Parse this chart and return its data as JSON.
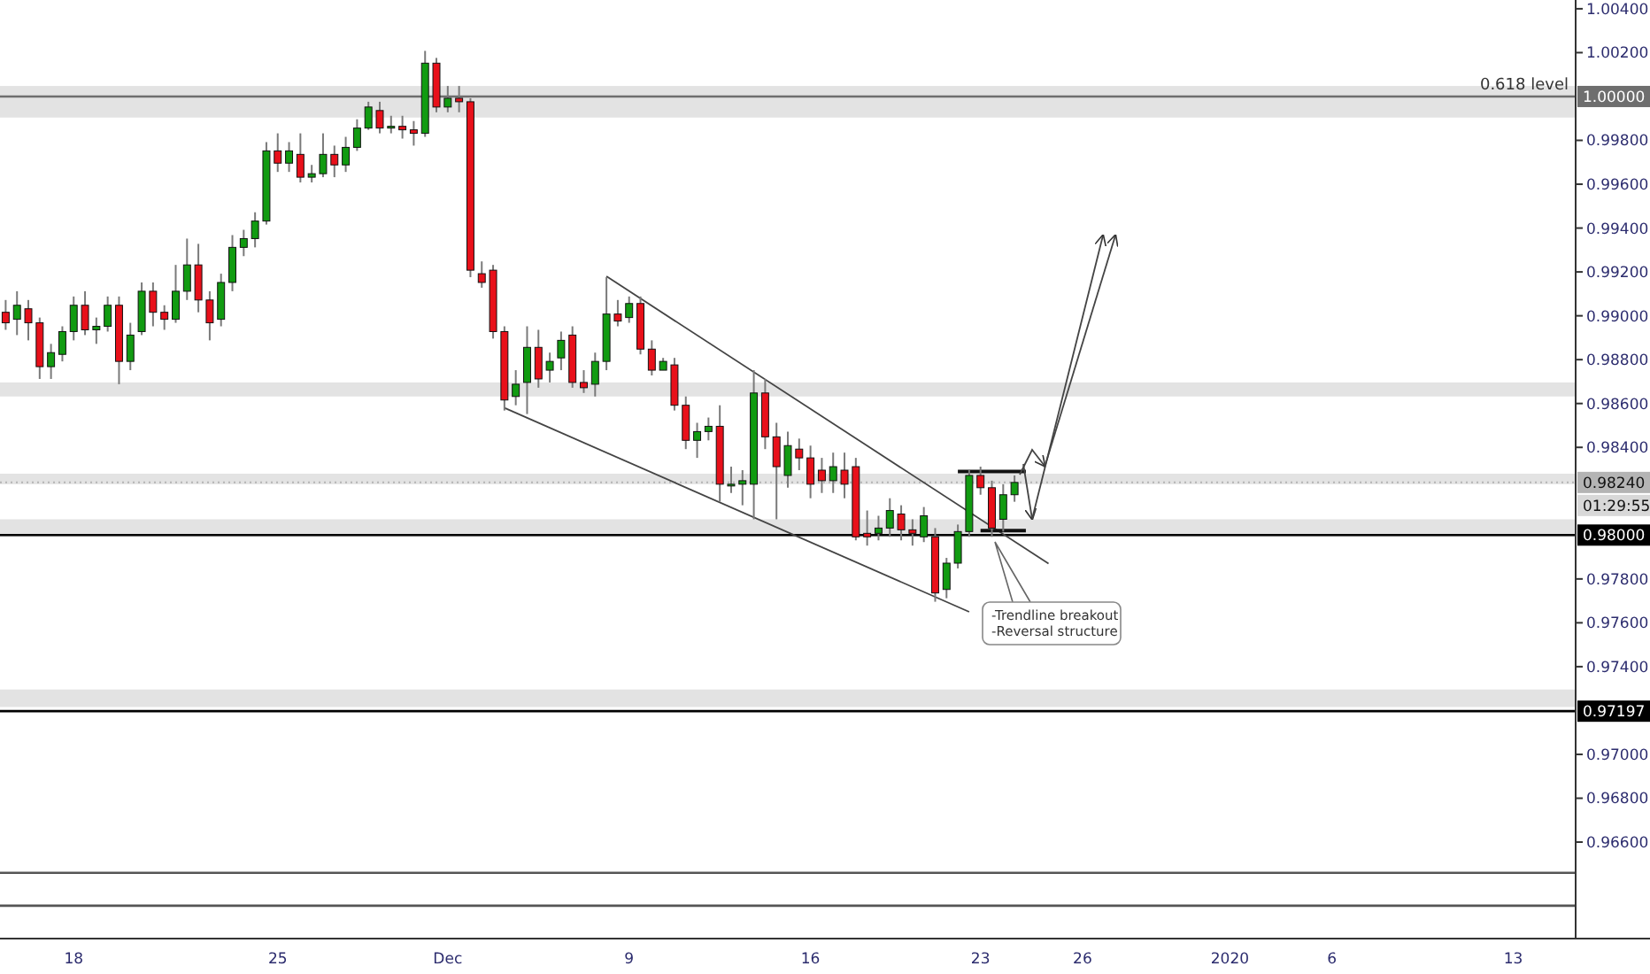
{
  "chart_data": {
    "type": "candlestick",
    "categories": [
      null,
      null,
      null,
      null,
      null,
      null,
      "18",
      null,
      null,
      null,
      null,
      null,
      null,
      null,
      null,
      null,
      null,
      null,
      null,
      null,
      null,
      null,
      null,
      null,
      "25",
      null,
      null,
      null,
      null,
      null,
      null,
      null,
      null,
      null,
      null,
      null,
      null,
      null,
      null,
      "Dec",
      null,
      null,
      null,
      null,
      null,
      null,
      null,
      null,
      null,
      null,
      null,
      null,
      null,
      null,
      null,
      "9",
      null,
      null,
      null,
      null,
      null,
      null,
      null,
      null,
      null,
      null,
      null,
      null,
      null,
      null,
      null,
      "16",
      null,
      null,
      null,
      null,
      null,
      null,
      null,
      null,
      null,
      null,
      null,
      null,
      null,
      null,
      "23",
      null,
      null,
      null,
      null,
      null,
      null,
      null,
      null,
      "26",
      null,
      null,
      null,
      null,
      null,
      null,
      null,
      null,
      null,
      null,
      null,
      null,
      "2020",
      null,
      null,
      null,
      null,
      null,
      null,
      null,
      null,
      "6",
      null,
      null,
      null,
      null,
      null,
      null,
      null,
      null,
      null,
      null,
      null,
      null,
      null,
      null,
      null,
      "13",
      null,
      null,
      null,
      null,
      null
    ],
    "ohlc": [
      [
        0.99016,
        0.99072,
        0.98936,
        0.98968
      ],
      [
        0.98984,
        0.99112,
        0.98912,
        0.99048
      ],
      [
        0.99032,
        0.99072,
        0.98888,
        0.98968
      ],
      [
        0.98968,
        0.98992,
        0.98712,
        0.98768
      ],
      [
        0.98768,
        0.98872,
        0.98712,
        0.98832
      ],
      [
        0.98824,
        0.98952,
        0.98792,
        0.98928
      ],
      [
        0.98928,
        0.99088,
        0.98888,
        0.99048
      ],
      [
        0.99048,
        0.99112,
        0.98912,
        0.98936
      ],
      [
        0.98936,
        0.98992,
        0.98872,
        0.98952
      ],
      [
        0.98952,
        0.99088,
        0.98928,
        0.99048
      ],
      [
        0.99048,
        0.99088,
        0.98688,
        0.98792
      ],
      [
        0.98792,
        0.98968,
        0.98752,
        0.98912
      ],
      [
        0.98928,
        0.99152,
        0.98912,
        0.99112
      ],
      [
        0.99112,
        0.99152,
        0.98952,
        0.99016
      ],
      [
        0.99016,
        0.99048,
        0.98936,
        0.98984
      ],
      [
        0.98984,
        0.99232,
        0.98968,
        0.99112
      ],
      [
        0.99112,
        0.99352,
        0.99072,
        0.99232
      ],
      [
        0.99232,
        0.99328,
        0.99016,
        0.99072
      ],
      [
        0.99072,
        0.99112,
        0.98888,
        0.98968
      ],
      [
        0.98984,
        0.99192,
        0.98952,
        0.99152
      ],
      [
        0.99152,
        0.99368,
        0.99112,
        0.99312
      ],
      [
        0.99312,
        0.99392,
        0.99272,
        0.99352
      ],
      [
        0.99352,
        0.99472,
        0.99312,
        0.99432
      ],
      [
        0.99432,
        0.99792,
        0.99416,
        0.99752
      ],
      [
        0.99752,
        0.99832,
        0.99656,
        0.99696
      ],
      [
        0.99696,
        0.99792,
        0.99656,
        0.99752
      ],
      [
        0.99736,
        0.99832,
        0.99608,
        0.99632
      ],
      [
        0.99632,
        0.99688,
        0.99608,
        0.99648
      ],
      [
        0.99648,
        0.99832,
        0.99632,
        0.99736
      ],
      [
        0.99736,
        0.99776,
        0.99632,
        0.99688
      ],
      [
        0.99688,
        0.99816,
        0.99656,
        0.99768
      ],
      [
        0.99768,
        0.99896,
        0.99752,
        0.99856
      ],
      [
        0.99856,
        0.99976,
        0.99848,
        0.99952
      ],
      [
        0.99936,
        0.99976,
        0.99832,
        0.99856
      ],
      [
        0.99856,
        0.99912,
        0.99832,
        0.99864
      ],
      [
        0.99864,
        0.99912,
        0.99808,
        0.99848
      ],
      [
        0.99848,
        0.99888,
        0.99776,
        0.99832
      ],
      [
        0.99832,
        1.00208,
        0.99816,
        1.00152
      ],
      [
        1.00152,
        1.00176,
        0.99928,
        0.99952
      ],
      [
        0.99952,
        1.00048,
        0.99928,
        0.99992
      ],
      [
        0.99992,
        1.00048,
        0.99928,
        0.99976
      ],
      [
        0.99976,
        0.99992,
        0.99176,
        0.99208
      ],
      [
        0.99192,
        0.99248,
        0.99128,
        0.99152
      ],
      [
        0.99208,
        0.99232,
        0.98896,
        0.98928
      ],
      [
        0.98928,
        0.98952,
        0.98568,
        0.98616
      ],
      [
        0.98632,
        0.98752,
        0.98592,
        0.98688
      ],
      [
        0.98696,
        0.98952,
        0.98552,
        0.98856
      ],
      [
        0.98856,
        0.98936,
        0.98672,
        0.98712
      ],
      [
        0.98752,
        0.98832,
        0.98696,
        0.98792
      ],
      [
        0.98808,
        0.98928,
        0.98752,
        0.98888
      ],
      [
        0.98912,
        0.98952,
        0.98672,
        0.98696
      ],
      [
        0.98696,
        0.98752,
        0.98648,
        0.98672
      ],
      [
        0.98688,
        0.98832,
        0.98632,
        0.98792
      ],
      [
        0.98792,
        0.99176,
        0.98752,
        0.99008
      ],
      [
        0.99008,
        0.99072,
        0.98952,
        0.98976
      ],
      [
        0.98992,
        0.99088,
        0.98968,
        0.99056
      ],
      [
        0.99056,
        0.99088,
        0.98824,
        0.98848
      ],
      [
        0.98848,
        0.98888,
        0.98728,
        0.98752
      ],
      [
        0.98752,
        0.98808,
        0.98752,
        0.98792
      ],
      [
        0.98776,
        0.98808,
        0.98568,
        0.98592
      ],
      [
        0.98592,
        0.98632,
        0.98392,
        0.98432
      ],
      [
        0.98432,
        0.98512,
        0.98352,
        0.98472
      ],
      [
        0.98472,
        0.98536,
        0.98432,
        0.98496
      ],
      [
        0.98496,
        0.98592,
        0.98152,
        0.98232
      ],
      [
        0.98232,
        0.98312,
        0.98192,
        0.98232
      ],
      [
        0.98232,
        0.98296,
        0.98136,
        0.98248
      ],
      [
        0.98232,
        0.98752,
        0.98072,
        0.98648
      ],
      [
        0.98648,
        0.98712,
        0.98392,
        0.98448
      ],
      [
        0.98448,
        0.98512,
        0.98072,
        0.98312
      ],
      [
        0.98272,
        0.98472,
        0.98216,
        0.98408
      ],
      [
        0.98392,
        0.9844,
        0.98296,
        0.98352
      ],
      [
        0.98352,
        0.98408,
        0.98168,
        0.98232
      ],
      [
        0.98296,
        0.98352,
        0.98192,
        0.98248
      ],
      [
        0.98248,
        0.98376,
        0.98192,
        0.98312
      ],
      [
        0.98296,
        0.98376,
        0.98168,
        0.98232
      ],
      [
        0.98312,
        0.98352,
        0.97976,
        0.97992
      ],
      [
        0.98008,
        0.98112,
        0.97952,
        0.97992
      ],
      [
        0.98008,
        0.98088,
        0.97976,
        0.98032
      ],
      [
        0.98032,
        0.98168,
        0.97992,
        0.98112
      ],
      [
        0.98096,
        0.98136,
        0.97976,
        0.98024
      ],
      [
        0.98024,
        0.98072,
        0.97952,
        0.98008
      ],
      [
        0.97992,
        0.98128,
        0.97968,
        0.98088
      ],
      [
        0.97992,
        0.98032,
        0.97696,
        0.97736
      ],
      [
        0.97752,
        0.97896,
        0.97712,
        0.97872
      ],
      [
        0.97872,
        0.98048,
        0.97848,
        0.98016
      ],
      [
        0.98016,
        0.98296,
        0.97992,
        0.98272
      ],
      [
        0.98272,
        0.98312,
        0.98184,
        0.98216
      ],
      [
        0.98216,
        0.98248,
        0.97992,
        0.98032
      ],
      [
        0.98072,
        0.98232,
        0.98016,
        0.98184
      ],
      [
        0.98184,
        0.98272,
        0.98152,
        0.9824
      ],
      null,
      null,
      null,
      null,
      null,
      null,
      null,
      null,
      null,
      null,
      null,
      null,
      null,
      null,
      null,
      null,
      null,
      null,
      null,
      null,
      null,
      null,
      null,
      null,
      null,
      null,
      null,
      null,
      null,
      null,
      null,
      null,
      null,
      null,
      null,
      null,
      null,
      null,
      null,
      null,
      null,
      null,
      null,
      null,
      null,
      null,
      null,
      null,
      null
    ],
    "series": [
      {
        "type": "line",
        "color": "#444444",
        "values": [
          null,
          null,
          null,
          null,
          null,
          null,
          null,
          null,
          null,
          null,
          null,
          null,
          null,
          null,
          null,
          null,
          null,
          null,
          null,
          null,
          null,
          null,
          null,
          null,
          null,
          null,
          null,
          null,
          null,
          null,
          null,
          null,
          null,
          null,
          null,
          null,
          null,
          null,
          null,
          null,
          null,
          null,
          null,
          null,
          null,
          null,
          null,
          null,
          null,
          null,
          null,
          null,
          null,
          0.9918,
          null,
          null,
          null,
          null,
          null,
          null,
          null,
          null,
          null,
          null,
          null,
          null,
          null,
          null,
          null,
          null,
          null,
          null,
          null,
          null,
          null,
          null,
          null,
          null,
          null,
          null,
          null,
          null,
          null,
          null,
          null,
          null,
          null,
          null,
          null,
          null,
          null,
          null,
          0.9787,
          null,
          null,
          null,
          null,
          null,
          null,
          null,
          null,
          null,
          null,
          null,
          null,
          null,
          null,
          null,
          null,
          null,
          null,
          null,
          null,
          null,
          null,
          null,
          null,
          null,
          null,
          null,
          null,
          null,
          null,
          null,
          null,
          null,
          null,
          null,
          null,
          null,
          null,
          null,
          null,
          null,
          null,
          null,
          null,
          null,
          null
        ]
      },
      {
        "type": "line",
        "color": "#444444",
        "values": [
          null,
          null,
          null,
          null,
          null,
          null,
          null,
          null,
          null,
          null,
          null,
          null,
          null,
          null,
          null,
          null,
          null,
          null,
          null,
          null,
          null,
          null,
          null,
          null,
          null,
          null,
          null,
          null,
          null,
          null,
          null,
          null,
          null,
          null,
          null,
          null,
          null,
          null,
          null,
          null,
          null,
          null,
          null,
          null,
          0.9858,
          null,
          null,
          null,
          null,
          null,
          null,
          null,
          null,
          null,
          null,
          null,
          null,
          null,
          null,
          null,
          null,
          null,
          null,
          null,
          null,
          null,
          null,
          null,
          null,
          null,
          null,
          null,
          null,
          null,
          null,
          null,
          null,
          null,
          null,
          null,
          null,
          null,
          null,
          null,
          null,
          0.9765,
          null,
          null,
          null,
          null,
          null,
          null,
          null,
          null,
          null,
          null,
          null,
          null,
          null,
          null,
          null,
          null,
          null,
          null,
          null,
          null,
          null,
          null,
          null,
          null,
          null,
          null,
          null,
          null,
          null,
          null,
          null,
          null,
          null,
          null,
          null,
          null,
          null,
          null,
          null,
          null,
          null,
          null,
          null,
          null,
          null,
          null,
          null,
          null,
          null,
          null,
          null,
          null,
          null
        ]
      },
      {
        "type": "line",
        "color": "#111111",
        "values": [
          null,
          null,
          null,
          null,
          null,
          null,
          null,
          null,
          null,
          null,
          null,
          null,
          null,
          null,
          null,
          null,
          null,
          null,
          null,
          null,
          null,
          null,
          null,
          null,
          null,
          null,
          null,
          null,
          null,
          null,
          null,
          null,
          null,
          null,
          null,
          null,
          null,
          null,
          null,
          null,
          null,
          null,
          null,
          null,
          null,
          null,
          null,
          null,
          null,
          null,
          null,
          null,
          null,
          null,
          null,
          null,
          null,
          null,
          null,
          null,
          null,
          null,
          null,
          null,
          null,
          null,
          null,
          null,
          null,
          null,
          null,
          null,
          null,
          null,
          null,
          null,
          null,
          null,
          null,
          null,
          null,
          null,
          null,
          null,
          0.9829,
          null,
          null,
          null,
          null,
          null,
          0.9829,
          null,
          null,
          null,
          null,
          null,
          null,
          null,
          null,
          null,
          null,
          null,
          null,
          null,
          null,
          null,
          null,
          null,
          null,
          null,
          null,
          null,
          null,
          null,
          null,
          null,
          null,
          null,
          null,
          null,
          null,
          null,
          null,
          null,
          null,
          null,
          null,
          null,
          null,
          null,
          null,
          null,
          null,
          null,
          null,
          null,
          null,
          null,
          null
        ]
      },
      {
        "type": "line",
        "color": "#111111",
        "values": [
          null,
          null,
          null,
          null,
          null,
          null,
          null,
          null,
          null,
          null,
          null,
          null,
          null,
          null,
          null,
          null,
          null,
          null,
          null,
          null,
          null,
          null,
          null,
          null,
          null,
          null,
          null,
          null,
          null,
          null,
          null,
          null,
          null,
          null,
          null,
          null,
          null,
          null,
          null,
          null,
          null,
          null,
          null,
          null,
          null,
          null,
          null,
          null,
          null,
          null,
          null,
          null,
          null,
          null,
          null,
          null,
          null,
          null,
          null,
          null,
          null,
          null,
          null,
          null,
          null,
          null,
          null,
          null,
          null,
          null,
          null,
          null,
          null,
          null,
          null,
          null,
          null,
          null,
          null,
          null,
          null,
          null,
          null,
          null,
          null,
          null,
          0.9802,
          null,
          null,
          null,
          0.9802,
          null,
          null,
          null,
          null,
          null,
          null,
          null,
          null,
          null,
          null,
          null,
          null,
          null,
          null,
          null,
          null,
          null,
          null,
          null,
          null,
          null,
          null,
          null,
          null,
          null,
          null,
          null,
          null,
          null,
          null,
          null,
          null,
          null,
          null,
          null,
          null,
          null,
          null,
          null,
          null,
          null,
          null,
          null,
          null,
          null,
          null,
          null,
          null
        ]
      }
    ],
    "ylim": [
      0.9616,
      1.0044
    ],
    "yticks": [
      {
        "value": 0.966,
        "label": "0.96600"
      },
      {
        "value": 0.968,
        "label": "0.96800"
      },
      {
        "value": 0.97,
        "label": "0.97000"
      },
      {
        "value": 0.974,
        "label": "0.97400"
      },
      {
        "value": 0.976,
        "label": "0.97600"
      },
      {
        "value": 0.978,
        "label": "0.97800"
      },
      {
        "value": 0.984,
        "label": "0.98400"
      },
      {
        "value": 0.986,
        "label": "0.98600"
      },
      {
        "value": 0.988,
        "label": "0.98800"
      },
      {
        "value": 0.99,
        "label": "0.99000"
      },
      {
        "value": 0.992,
        "label": "0.99200"
      },
      {
        "value": 0.994,
        "label": "0.99400"
      },
      {
        "value": 0.996,
        "label": "0.99600"
      },
      {
        "value": 0.998,
        "label": "0.99800"
      },
      {
        "value": 1.002,
        "label": "1.00200"
      },
      {
        "value": 1.004,
        "label": "1.00400"
      }
    ],
    "bands": [
      {
        "axis": "y",
        "from": 0.99904,
        "to": 1.00048,
        "color": "#e0e0e0"
      },
      {
        "axis": "y",
        "from": 0.98632,
        "to": 0.98696,
        "color": "#e0e0e0"
      },
      {
        "axis": "y",
        "from": 0.98232,
        "to": 0.9828,
        "color": "#e0e0e0"
      },
      {
        "axis": "y",
        "from": 0.97992,
        "to": 0.98072,
        "color": "#e0e0e0"
      },
      {
        "axis": "y",
        "from": 0.97216,
        "to": 0.97296,
        "color": "#e0e0e0"
      }
    ],
    "ref_lines": [
      {
        "axis": "y",
        "value": 1.0,
        "label": "1.00000",
        "color": "#6e6e6e"
      },
      {
        "axis": "y",
        "value": 0.98,
        "label": "0.98000",
        "color": "#000000"
      },
      {
        "axis": "y",
        "value": 0.97197,
        "label": "0.97197",
        "color": "#000000"
      },
      {
        "axis": "y",
        "value": 0.9824,
        "label": "0.98240",
        "color": "#b4b4b4",
        "line_style": "dotted"
      },
      {
        "axis": "y",
        "value": 0.9646,
        "color": "#555555"
      },
      {
        "axis": "y",
        "value": 0.9631,
        "color": "#555555"
      }
    ],
    "annotations": [
      {
        "text": "0.618 level",
        "y": 1.0
      },
      "-Trendline breakout",
      "-Reversal structure",
      "01:29:55"
    ]
  }
}
